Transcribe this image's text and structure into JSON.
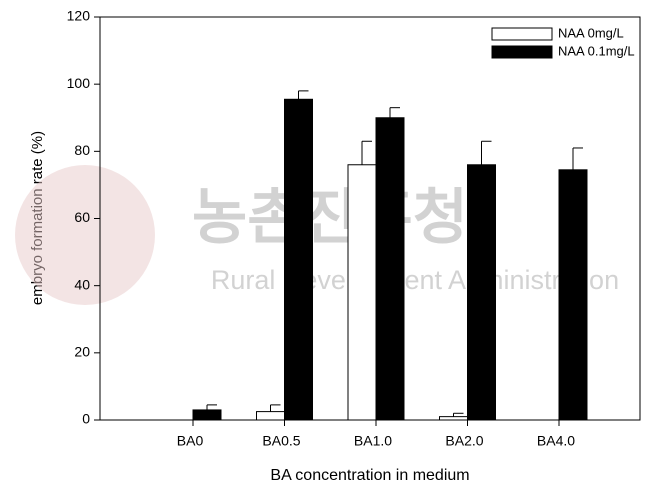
{
  "chart_data": {
    "type": "bar",
    "x_label": "BA concentration in medium",
    "y_label": "embryo formation rate (%)",
    "categories": [
      "BA0",
      "BA0.5",
      "BA1.0",
      "BA2.0",
      "BA4.0"
    ],
    "series": [
      {
        "name": "NAA 0mg/L",
        "color": "#ffffff",
        "values": [
          0,
          2.5,
          76,
          1,
          0
        ],
        "errors": [
          0,
          2,
          7,
          1,
          0
        ]
      },
      {
        "name": "NAA 0.1mg/L",
        "color": "#000000",
        "values": [
          3,
          95.5,
          90,
          76,
          74.5
        ],
        "errors": [
          1.5,
          2.5,
          3,
          7,
          6.5
        ]
      }
    ],
    "ylim": [
      0,
      120
    ],
    "yticks": [
      0,
      20,
      40,
      60,
      80,
      100,
      120
    ],
    "legend": "top-right"
  },
  "watermark": {
    "title": "농촌진흥청",
    "subtitle": "Rural Development Administration"
  }
}
